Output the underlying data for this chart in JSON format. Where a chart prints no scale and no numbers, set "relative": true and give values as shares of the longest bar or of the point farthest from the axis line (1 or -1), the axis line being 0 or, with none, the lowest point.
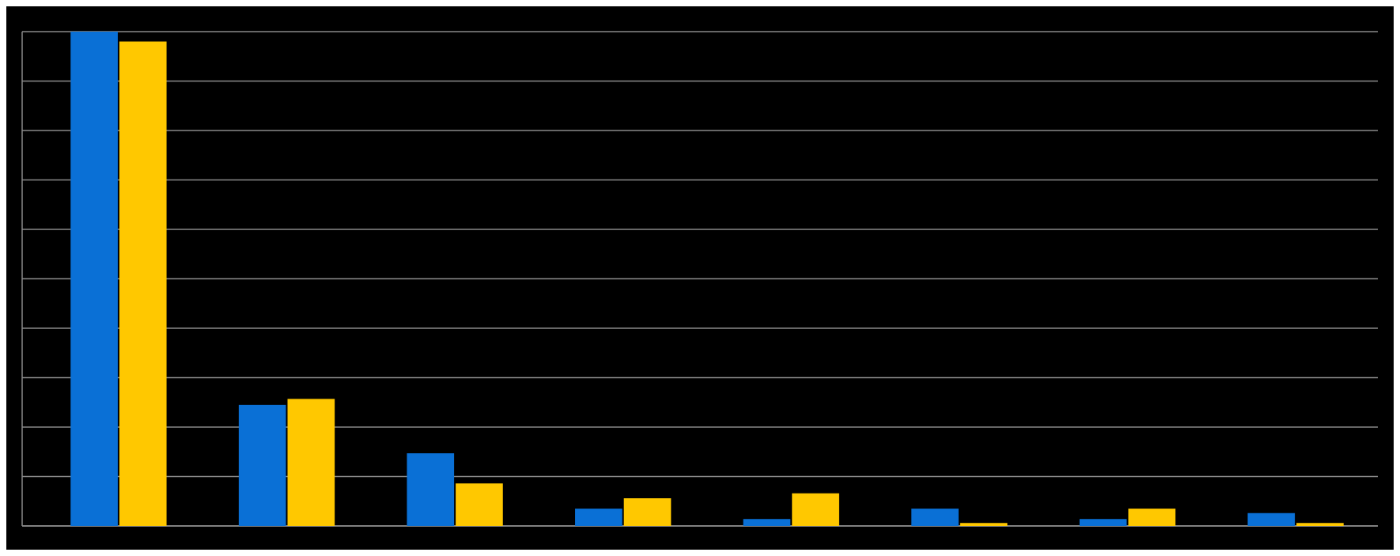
{
  "chart_data": {
    "type": "bar",
    "relative": true,
    "grid": "y",
    "categories": [
      null,
      null,
      null,
      null,
      null,
      null,
      null,
      null
    ],
    "series": [
      {
        "color": "#0a70d6",
        "values": [
          1,
          0.245,
          0.147,
          0.035,
          0.014,
          0.035,
          0.014,
          0.026
        ]
      },
      {
        "color": "#ffc800",
        "values": [
          0.98,
          0.257,
          0.086,
          0.056,
          0.066,
          0.006,
          0.035,
          0.006
        ]
      }
    ]
  }
}
